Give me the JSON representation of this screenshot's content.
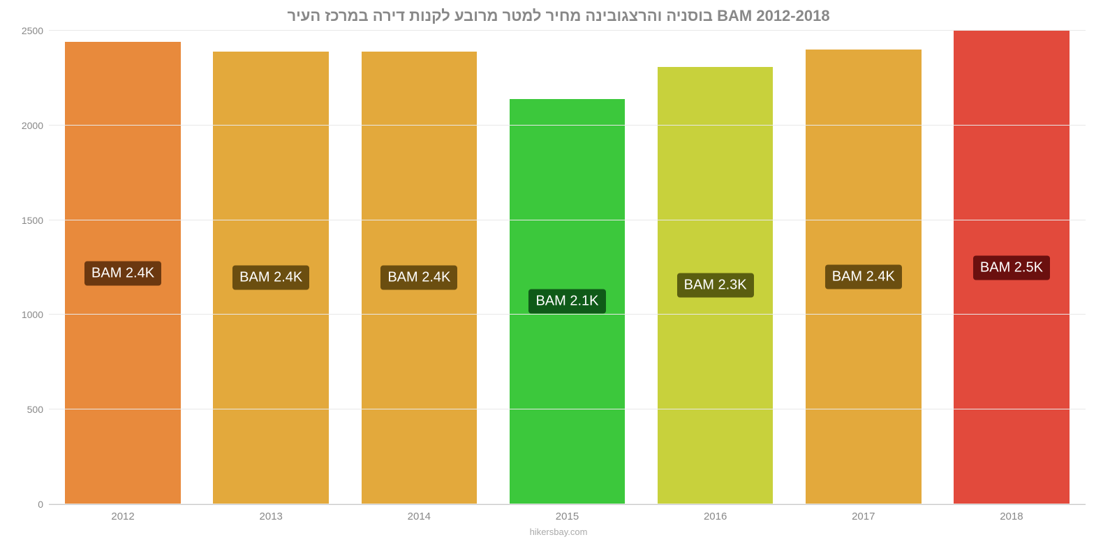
{
  "chart": {
    "type": "bar",
    "title": "בוסניה והרצגובינה מחיר למטר מרובע לקנות דירה במרכז העיר BAM 2012-2018",
    "title_fontsize": 22,
    "title_color": "#888888",
    "categories": [
      "2012",
      "2013",
      "2014",
      "2015",
      "2016",
      "2017",
      "2018"
    ],
    "values": [
      2440,
      2390,
      2390,
      2140,
      2310,
      2400,
      2500
    ],
    "bar_colors": [
      "#e88a3c",
      "#e3a93c",
      "#e3a93c",
      "#3cc83c",
      "#c8d13c",
      "#e3a93c",
      "#e24a3c"
    ],
    "bar_labels": [
      "BAM 2.4K",
      "BAM 2.4K",
      "BAM 2.4K",
      "BAM 2.1K",
      "BAM 2.3K",
      "BAM 2.4K",
      "BAM 2.5K"
    ],
    "bar_label_bg": [
      "#6b3810",
      "#6b4e10",
      "#6b4e10",
      "#0f5a18",
      "#5a5e10",
      "#6b4e10",
      "#6b100f"
    ],
    "bar_label_color": "#ffffff",
    "bar_label_fontsize": 20,
    "bar_width_pct": 78,
    "ylim": [
      0,
      2500
    ],
    "yticks": [
      0,
      500,
      1000,
      1500,
      2000,
      2500
    ],
    "ytick_labels": [
      "0",
      "500",
      "1000",
      "1500",
      "2000",
      "2500"
    ],
    "grid_color": "#e8e8e8",
    "axis_label_color": "#888888",
    "axis_label_fontsize": 14,
    "background_color": "#ffffff",
    "source_text": "hikersbay.com",
    "source_color": "#aaaaaa",
    "source_fontsize": 13
  }
}
